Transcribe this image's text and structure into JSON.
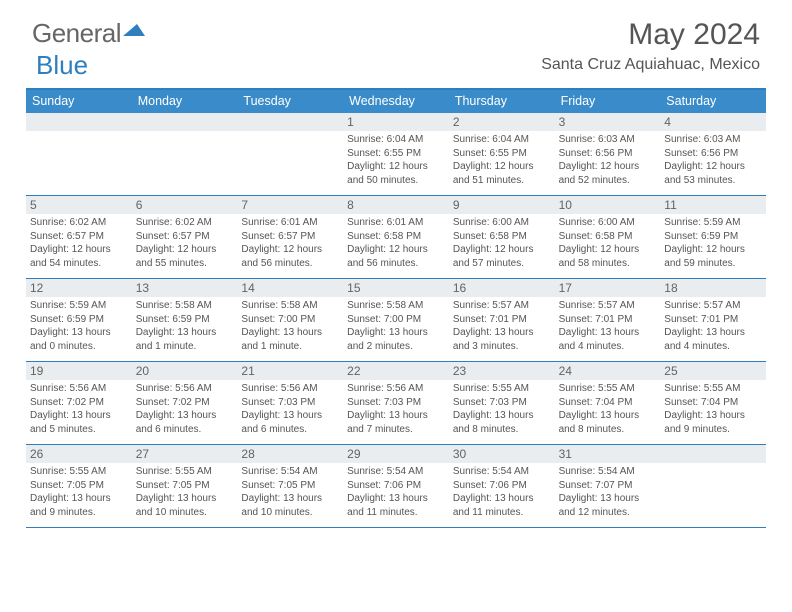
{
  "logo": {
    "general": "General",
    "blue": "Blue"
  },
  "title": "May 2024",
  "location": "Santa Cruz Aquiahuac, Mexico",
  "colors": {
    "header_bar": "#3a8bc9",
    "border": "#2f7fbf",
    "daynum_bg": "#e9edf0",
    "text": "#555555"
  },
  "days_of_week": [
    "Sunday",
    "Monday",
    "Tuesday",
    "Wednesday",
    "Thursday",
    "Friday",
    "Saturday"
  ],
  "weeks": [
    [
      null,
      null,
      null,
      {
        "n": "1",
        "sr": "6:04 AM",
        "ss": "6:55 PM",
        "dl": "12 hours and 50 minutes."
      },
      {
        "n": "2",
        "sr": "6:04 AM",
        "ss": "6:55 PM",
        "dl": "12 hours and 51 minutes."
      },
      {
        "n": "3",
        "sr": "6:03 AM",
        "ss": "6:56 PM",
        "dl": "12 hours and 52 minutes."
      },
      {
        "n": "4",
        "sr": "6:03 AM",
        "ss": "6:56 PM",
        "dl": "12 hours and 53 minutes."
      }
    ],
    [
      {
        "n": "5",
        "sr": "6:02 AM",
        "ss": "6:57 PM",
        "dl": "12 hours and 54 minutes."
      },
      {
        "n": "6",
        "sr": "6:02 AM",
        "ss": "6:57 PM",
        "dl": "12 hours and 55 minutes."
      },
      {
        "n": "7",
        "sr": "6:01 AM",
        "ss": "6:57 PM",
        "dl": "12 hours and 56 minutes."
      },
      {
        "n": "8",
        "sr": "6:01 AM",
        "ss": "6:58 PM",
        "dl": "12 hours and 56 minutes."
      },
      {
        "n": "9",
        "sr": "6:00 AM",
        "ss": "6:58 PM",
        "dl": "12 hours and 57 minutes."
      },
      {
        "n": "10",
        "sr": "6:00 AM",
        "ss": "6:58 PM",
        "dl": "12 hours and 58 minutes."
      },
      {
        "n": "11",
        "sr": "5:59 AM",
        "ss": "6:59 PM",
        "dl": "12 hours and 59 minutes."
      }
    ],
    [
      {
        "n": "12",
        "sr": "5:59 AM",
        "ss": "6:59 PM",
        "dl": "13 hours and 0 minutes."
      },
      {
        "n": "13",
        "sr": "5:58 AM",
        "ss": "6:59 PM",
        "dl": "13 hours and 1 minute."
      },
      {
        "n": "14",
        "sr": "5:58 AM",
        "ss": "7:00 PM",
        "dl": "13 hours and 1 minute."
      },
      {
        "n": "15",
        "sr": "5:58 AM",
        "ss": "7:00 PM",
        "dl": "13 hours and 2 minutes."
      },
      {
        "n": "16",
        "sr": "5:57 AM",
        "ss": "7:01 PM",
        "dl": "13 hours and 3 minutes."
      },
      {
        "n": "17",
        "sr": "5:57 AM",
        "ss": "7:01 PM",
        "dl": "13 hours and 4 minutes."
      },
      {
        "n": "18",
        "sr": "5:57 AM",
        "ss": "7:01 PM",
        "dl": "13 hours and 4 minutes."
      }
    ],
    [
      {
        "n": "19",
        "sr": "5:56 AM",
        "ss": "7:02 PM",
        "dl": "13 hours and 5 minutes."
      },
      {
        "n": "20",
        "sr": "5:56 AM",
        "ss": "7:02 PM",
        "dl": "13 hours and 6 minutes."
      },
      {
        "n": "21",
        "sr": "5:56 AM",
        "ss": "7:03 PM",
        "dl": "13 hours and 6 minutes."
      },
      {
        "n": "22",
        "sr": "5:56 AM",
        "ss": "7:03 PM",
        "dl": "13 hours and 7 minutes."
      },
      {
        "n": "23",
        "sr": "5:55 AM",
        "ss": "7:03 PM",
        "dl": "13 hours and 8 minutes."
      },
      {
        "n": "24",
        "sr": "5:55 AM",
        "ss": "7:04 PM",
        "dl": "13 hours and 8 minutes."
      },
      {
        "n": "25",
        "sr": "5:55 AM",
        "ss": "7:04 PM",
        "dl": "13 hours and 9 minutes."
      }
    ],
    [
      {
        "n": "26",
        "sr": "5:55 AM",
        "ss": "7:05 PM",
        "dl": "13 hours and 9 minutes."
      },
      {
        "n": "27",
        "sr": "5:55 AM",
        "ss": "7:05 PM",
        "dl": "13 hours and 10 minutes."
      },
      {
        "n": "28",
        "sr": "5:54 AM",
        "ss": "7:05 PM",
        "dl": "13 hours and 10 minutes."
      },
      {
        "n": "29",
        "sr": "5:54 AM",
        "ss": "7:06 PM",
        "dl": "13 hours and 11 minutes."
      },
      {
        "n": "30",
        "sr": "5:54 AM",
        "ss": "7:06 PM",
        "dl": "13 hours and 11 minutes."
      },
      {
        "n": "31",
        "sr": "5:54 AM",
        "ss": "7:07 PM",
        "dl": "13 hours and 12 minutes."
      },
      null
    ]
  ],
  "labels": {
    "sunrise": "Sunrise: ",
    "sunset": "Sunset: ",
    "daylight": "Daylight: "
  }
}
